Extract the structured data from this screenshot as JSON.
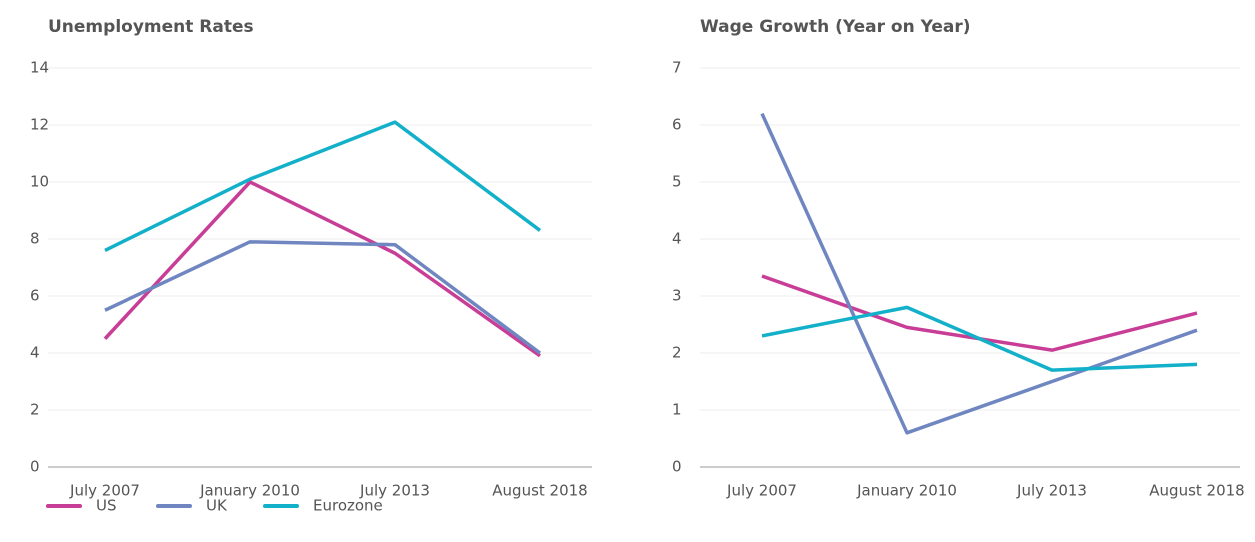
{
  "chart_data": [
    {
      "type": "line",
      "title": "Unemployment Rates",
      "categories": [
        "July 2007",
        "January 2010",
        "July 2013",
        "August 2018"
      ],
      "series": [
        {
          "values": [
            4.5,
            10.0,
            7.5,
            3.9
          ]
        },
        {
          "values": [
            5.5,
            7.9,
            7.8,
            4.0
          ]
        },
        {
          "values": [
            7.6,
            10.1,
            12.1,
            8.3
          ]
        }
      ],
      "ylim": [
        0,
        14
      ],
      "yticks": [
        0,
        2,
        4,
        6,
        8,
        10,
        12,
        14
      ],
      "grid": true
    },
    {
      "type": "line",
      "title": "Wage Growth (Year on Year)",
      "categories": [
        "July 2007",
        "January 2010",
        "July 2013",
        "August 2018"
      ],
      "series": [
        {
          "values": [
            3.35,
            2.45,
            2.05,
            2.7
          ]
        },
        {
          "values": [
            6.2,
            0.6,
            1.5,
            2.4
          ]
        },
        {
          "values": [
            2.3,
            2.8,
            1.7,
            1.8
          ]
        }
      ],
      "ylim": [
        0,
        7
      ],
      "yticks": [
        0,
        1,
        2,
        3,
        4,
        5,
        6,
        7
      ],
      "grid": true
    }
  ],
  "legend": [
    {
      "name": "US",
      "color": "#c83e97"
    },
    {
      "name": "UK",
      "color": "#6f86c0"
    },
    {
      "name": "Eurozone",
      "color": "#12b0c9"
    }
  ]
}
